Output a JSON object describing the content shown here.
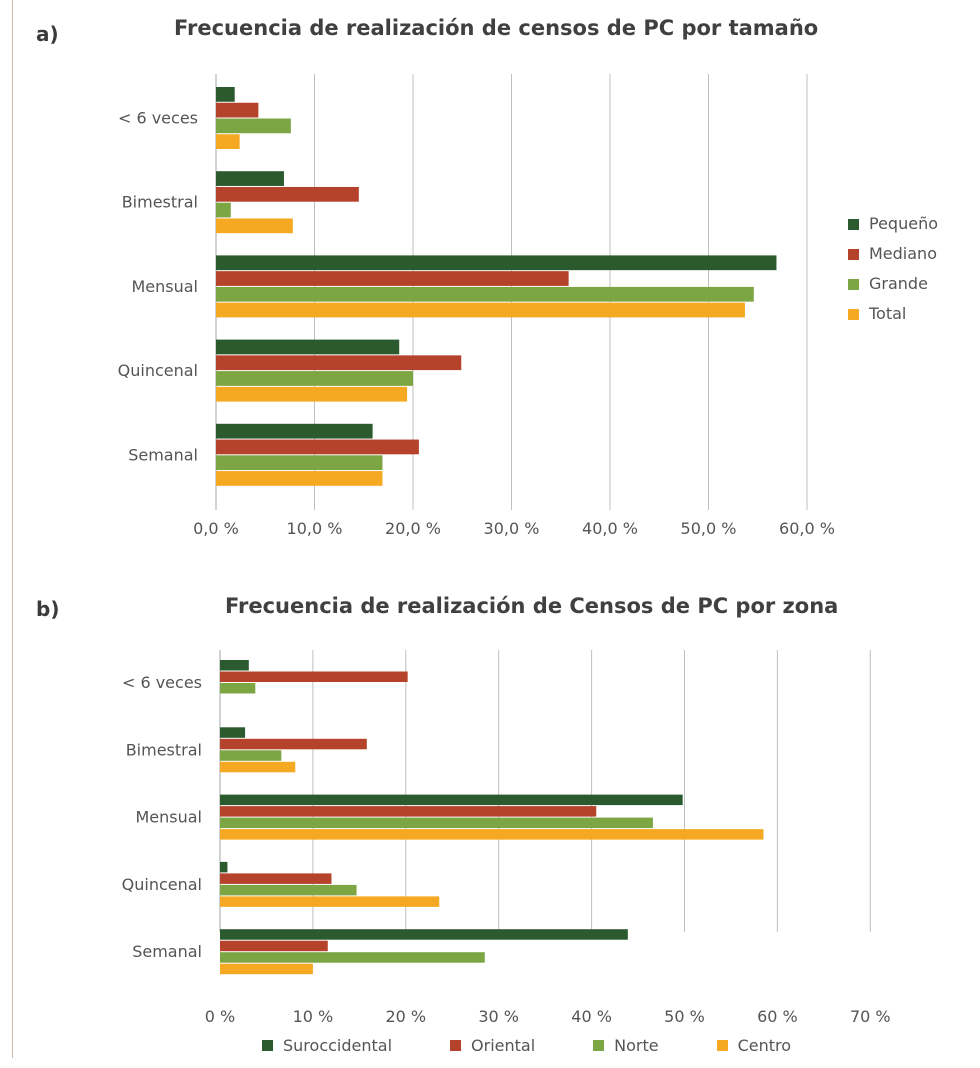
{
  "panel_a": {
    "letter": "a)",
    "title": "Frecuencia de realización de censos de PC por tamaño"
  },
  "panel_b": {
    "letter": "b)",
    "title": "Frecuencia de realización de Censos de PC por zona"
  },
  "chart_data": [
    {
      "type": "bar",
      "orientation": "horizontal",
      "title": "Frecuencia de realización de censos de PC por tamaño",
      "categories": [
        "< 6 veces",
        "Bimestral",
        "Mensual",
        "Quincenal",
        "Semanal"
      ],
      "x_ticks": [
        "0,0 %",
        "10,0 %",
        "20,0 %",
        "30,0 %",
        "40,0 %",
        "50,0 %",
        "60,0 %"
      ],
      "xlim": [
        0,
        60
      ],
      "grid": true,
      "legend_position": "right",
      "series": [
        {
          "name": "Pequeño",
          "color": "#2b5a2e",
          "values": [
            1.9,
            6.9,
            56.9,
            18.6,
            15.9
          ]
        },
        {
          "name": "Mediano",
          "color": "#b5432b",
          "values": [
            4.3,
            14.5,
            35.8,
            24.9,
            20.6
          ]
        },
        {
          "name": "Grande",
          "color": "#7ca544",
          "values": [
            7.6,
            1.5,
            54.6,
            20.0,
            16.9
          ]
        },
        {
          "name": "Total",
          "color": "#f5a922",
          "values": [
            2.4,
            7.8,
            53.7,
            19.4,
            16.9
          ]
        }
      ]
    },
    {
      "type": "bar",
      "orientation": "horizontal",
      "title": "Frecuencia de realización de Censos de PC por zona",
      "categories": [
        "< 6 veces",
        "Bimestral",
        "Mensual",
        "Quincenal",
        "Semanal"
      ],
      "x_ticks": [
        "0 %",
        "10 %",
        "20 %",
        "30 %",
        "40 %",
        "50 %",
        "60 %",
        "70 %"
      ],
      "xlim": [
        0,
        70
      ],
      "grid": true,
      "legend_position": "bottom",
      "series": [
        {
          "name": "Suroccidental",
          "color": "#2b5a2e",
          "values": [
            3.1,
            2.7,
            49.8,
            0.8,
            43.9
          ]
        },
        {
          "name": "Oriental",
          "color": "#b5432b",
          "values": [
            20.2,
            15.8,
            40.5,
            12.0,
            11.6
          ]
        },
        {
          "name": "Norte",
          "color": "#7ca544",
          "values": [
            3.8,
            6.6,
            46.6,
            14.7,
            28.5
          ]
        },
        {
          "name": "Centro",
          "color": "#f5a922",
          "values": [
            0,
            8.1,
            58.5,
            23.6,
            10.0
          ]
        }
      ]
    }
  ]
}
